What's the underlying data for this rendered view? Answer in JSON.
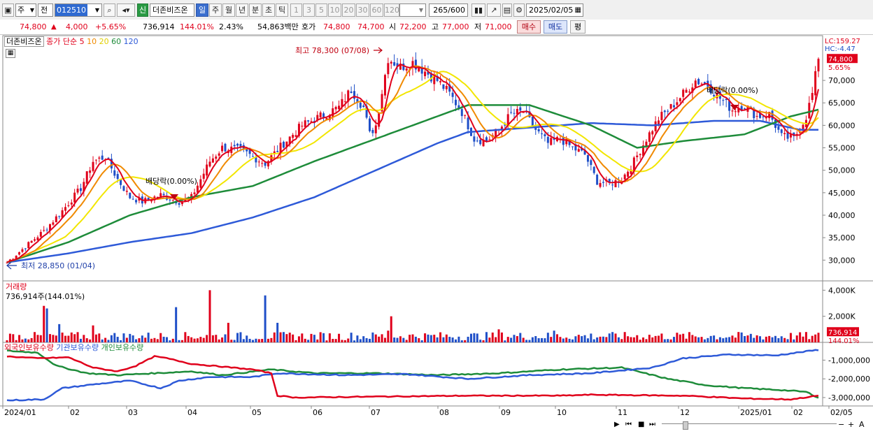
{
  "toolbar": {
    "market": "주",
    "prefix": "전",
    "code": "012510",
    "badge": "신",
    "name": "더존비즈온",
    "periods": [
      "일",
      "주",
      "월",
      "년",
      "분",
      "초",
      "틱"
    ],
    "active_period": "일",
    "minutes": [
      "1",
      "3",
      "5",
      "10",
      "20",
      "30",
      "60",
      "120"
    ],
    "count": "265",
    "count_total": "/600",
    "date": "2025/02/05"
  },
  "quote": {
    "price": "74,800",
    "up_mark": "▲",
    "change": "4,000",
    "change_pct": "+5.65%",
    "volume": "736,914",
    "volume_ratio": "144.01%",
    "turnover": "2.43%",
    "amount": "54,863백만",
    "bid_label": "호가",
    "ask": "74,800",
    "bid": "74,700",
    "open_label": "시",
    "open": "72,200",
    "high_label": "고",
    "high": "77,000",
    "low_label": "저",
    "low": "71,000",
    "buy": "매수",
    "sell": "매도",
    "eval": "평"
  },
  "colors": {
    "up": "#e0001b",
    "down": "#1f4fc8",
    "ma5": "#e0001b",
    "ma10": "#f08a00",
    "ma20": "#f2e600",
    "ma60": "#1e8c3a",
    "ma120": "#2e5ad8"
  },
  "chart_data": [
    {
      "type": "line",
      "name": "price",
      "legend_title": "더존비즈온",
      "legend_label": "종가 단순",
      "ma_periods": [
        "5",
        "10",
        "20",
        "60",
        "120"
      ],
      "x_labels": [
        "2024/01",
        "02",
        "03",
        "04",
        "05",
        "06",
        "07",
        "08",
        "09",
        "10",
        "11",
        "12",
        "2025/01",
        "02",
        "02/05"
      ],
      "y_ticks": [
        30000,
        35000,
        40000,
        45000,
        50000,
        55000,
        60000,
        65000,
        70000
      ],
      "y_tick_labels": [
        "30,000",
        "35,000",
        "40,000",
        "45,000",
        "50,000",
        "55,000",
        "60,000",
        "65,000",
        "70,000"
      ],
      "ylim": [
        26000,
        79500
      ],
      "lc": "LC:159.27",
      "hc": "HC:-4.47",
      "last_price": "74,800",
      "last_pct": "5.65%",
      "annotations": {
        "high": "최고 78,300 (07/08)",
        "low": "최저 28,850 (01/04)",
        "dividend1": "배당락(0.00%)",
        "dividend2": "배당락(0.00%)"
      },
      "close_keypoints": [
        [
          0,
          29500
        ],
        [
          6,
          33000
        ],
        [
          12,
          36500
        ],
        [
          18,
          41000
        ],
        [
          24,
          46000
        ],
        [
          28,
          52000
        ],
        [
          32,
          53000
        ],
        [
          36,
          48000
        ],
        [
          40,
          44000
        ],
        [
          44,
          43000
        ],
        [
          50,
          44500
        ],
        [
          56,
          43000
        ],
        [
          60,
          44000
        ],
        [
          66,
          52000
        ],
        [
          70,
          55000
        ],
        [
          76,
          54500
        ],
        [
          80,
          53000
        ],
        [
          84,
          51500
        ],
        [
          90,
          56000
        ],
        [
          96,
          60000
        ],
        [
          102,
          62000
        ],
        [
          108,
          64000
        ],
        [
          112,
          68000
        ],
        [
          116,
          64000
        ],
        [
          118,
          58000
        ],
        [
          120,
          60000
        ],
        [
          124,
          75000
        ],
        [
          128,
          73000
        ],
        [
          132,
          74000
        ],
        [
          136,
          72000
        ],
        [
          140,
          70000
        ],
        [
          144,
          67000
        ],
        [
          148,
          63000
        ],
        [
          152,
          57000
        ],
        [
          156,
          56500
        ],
        [
          160,
          59000
        ],
        [
          164,
          62500
        ],
        [
          168,
          63000
        ],
        [
          172,
          59000
        ],
        [
          176,
          56000
        ],
        [
          180,
          57000
        ],
        [
          184,
          55000
        ],
        [
          188,
          53500
        ],
        [
          192,
          47500
        ],
        [
          196,
          47000
        ],
        [
          200,
          48000
        ],
        [
          204,
          52000
        ],
        [
          208,
          57000
        ],
        [
          212,
          61500
        ],
        [
          216,
          64000
        ],
        [
          220,
          67000
        ],
        [
          224,
          70000
        ],
        [
          228,
          69000
        ],
        [
          232,
          66000
        ],
        [
          236,
          63500
        ],
        [
          240,
          64500
        ],
        [
          244,
          62000
        ],
        [
          248,
          62500
        ],
        [
          252,
          57500
        ],
        [
          256,
          57000
        ],
        [
          260,
          62000
        ],
        [
          262,
          67000
        ],
        [
          264,
          74800
        ]
      ],
      "ma60_keypoints": [
        [
          0,
          29500
        ],
        [
          20,
          34000
        ],
        [
          40,
          40000
        ],
        [
          60,
          44000
        ],
        [
          80,
          46500
        ],
        [
          100,
          52000
        ],
        [
          120,
          57000
        ],
        [
          140,
          62000
        ],
        [
          150,
          64500
        ],
        [
          170,
          64500
        ],
        [
          190,
          60000
        ],
        [
          205,
          55000
        ],
        [
          220,
          56500
        ],
        [
          240,
          58000
        ],
        [
          255,
          62000
        ],
        [
          264,
          63500
        ]
      ],
      "ma120_keypoints": [
        [
          0,
          29500
        ],
        [
          20,
          31500
        ],
        [
          40,
          34000
        ],
        [
          60,
          36000
        ],
        [
          80,
          39500
        ],
        [
          100,
          44000
        ],
        [
          120,
          50000
        ],
        [
          140,
          56000
        ],
        [
          150,
          58500
        ],
        [
          170,
          59500
        ],
        [
          190,
          60500
        ],
        [
          210,
          60000
        ],
        [
          230,
          61000
        ],
        [
          245,
          61000
        ],
        [
          258,
          59000
        ],
        [
          264,
          59000
        ]
      ]
    },
    {
      "type": "bar",
      "name": "거래량",
      "title": "거래량",
      "subtitle": "736,914주(144.01%)",
      "y_tick_labels": [
        "4,000K",
        "2,000K"
      ],
      "y_ticks": [
        4000,
        2000
      ],
      "ylim": [
        0,
        4500
      ],
      "last_label": "736,914",
      "last_pct": "144.01%",
      "spikes": [
        [
          12,
          2800
        ],
        [
          13,
          2600
        ],
        [
          17,
          1400
        ],
        [
          28,
          1300
        ],
        [
          55,
          2700
        ],
        [
          66,
          4000
        ],
        [
          72,
          1500
        ],
        [
          84,
          3600
        ],
        [
          88,
          1500
        ],
        [
          125,
          2000
        ],
        [
          124,
          900
        ],
        [
          160,
          1000
        ],
        [
          178,
          900
        ],
        [
          262,
          500
        ],
        [
          264,
          736
        ]
      ]
    },
    {
      "type": "line",
      "name": "holdings",
      "legend_items": [
        "외국인보유수량",
        "기관보유수량",
        "개인보유수량"
      ],
      "y_ticks": [
        -1000000,
        -2000000,
        -3000000
      ],
      "y_tick_labels": [
        "-1,000,000",
        "-2,000,000",
        "-3,000,000"
      ],
      "ylim": [
        -3300000,
        -200000
      ],
      "foreign_keypoints": [
        [
          0,
          -800000
        ],
        [
          10,
          -900000
        ],
        [
          20,
          -850000
        ],
        [
          28,
          -1400000
        ],
        [
          36,
          -1600000
        ],
        [
          42,
          -1300000
        ],
        [
          48,
          -800000
        ],
        [
          52,
          -900000
        ],
        [
          60,
          -1200000
        ],
        [
          70,
          -1350000
        ],
        [
          80,
          -1500000
        ],
        [
          86,
          -1700000
        ],
        [
          88,
          -2900000
        ],
        [
          94,
          -3000000
        ],
        [
          120,
          -2950000
        ],
        [
          150,
          -2900000
        ],
        [
          180,
          -2900000
        ],
        [
          190,
          -2850000
        ],
        [
          220,
          -2900000
        ],
        [
          240,
          -3050000
        ],
        [
          255,
          -3100000
        ],
        [
          264,
          -2900000
        ]
      ],
      "institution_keypoints": [
        [
          0,
          -3150000
        ],
        [
          12,
          -3100000
        ],
        [
          18,
          -2500000
        ],
        [
          28,
          -2300000
        ],
        [
          40,
          -2100000
        ],
        [
          50,
          -2500000
        ],
        [
          56,
          -2100000
        ],
        [
          66,
          -1900000
        ],
        [
          80,
          -1900000
        ],
        [
          88,
          -1700000
        ],
        [
          110,
          -1800000
        ],
        [
          130,
          -1750000
        ],
        [
          150,
          -2000000
        ],
        [
          170,
          -1800000
        ],
        [
          190,
          -1700000
        ],
        [
          210,
          -1400000
        ],
        [
          220,
          -900000
        ],
        [
          235,
          -700000
        ],
        [
          250,
          -750000
        ],
        [
          264,
          -450000
        ]
      ],
      "individual_keypoints": [
        [
          0,
          -500000
        ],
        [
          10,
          -600000
        ],
        [
          16,
          -1300000
        ],
        [
          26,
          -1700000
        ],
        [
          36,
          -1800000
        ],
        [
          48,
          -1700000
        ],
        [
          60,
          -1600000
        ],
        [
          70,
          -1800000
        ],
        [
          86,
          -1500000
        ],
        [
          100,
          -1700000
        ],
        [
          120,
          -1700000
        ],
        [
          140,
          -1800000
        ],
        [
          160,
          -1700000
        ],
        [
          180,
          -1500000
        ],
        [
          200,
          -1400000
        ],
        [
          215,
          -2000000
        ],
        [
          228,
          -2350000
        ],
        [
          240,
          -2500000
        ],
        [
          252,
          -2600000
        ],
        [
          260,
          -2700000
        ],
        [
          264,
          -3000000
        ]
      ]
    }
  ]
}
